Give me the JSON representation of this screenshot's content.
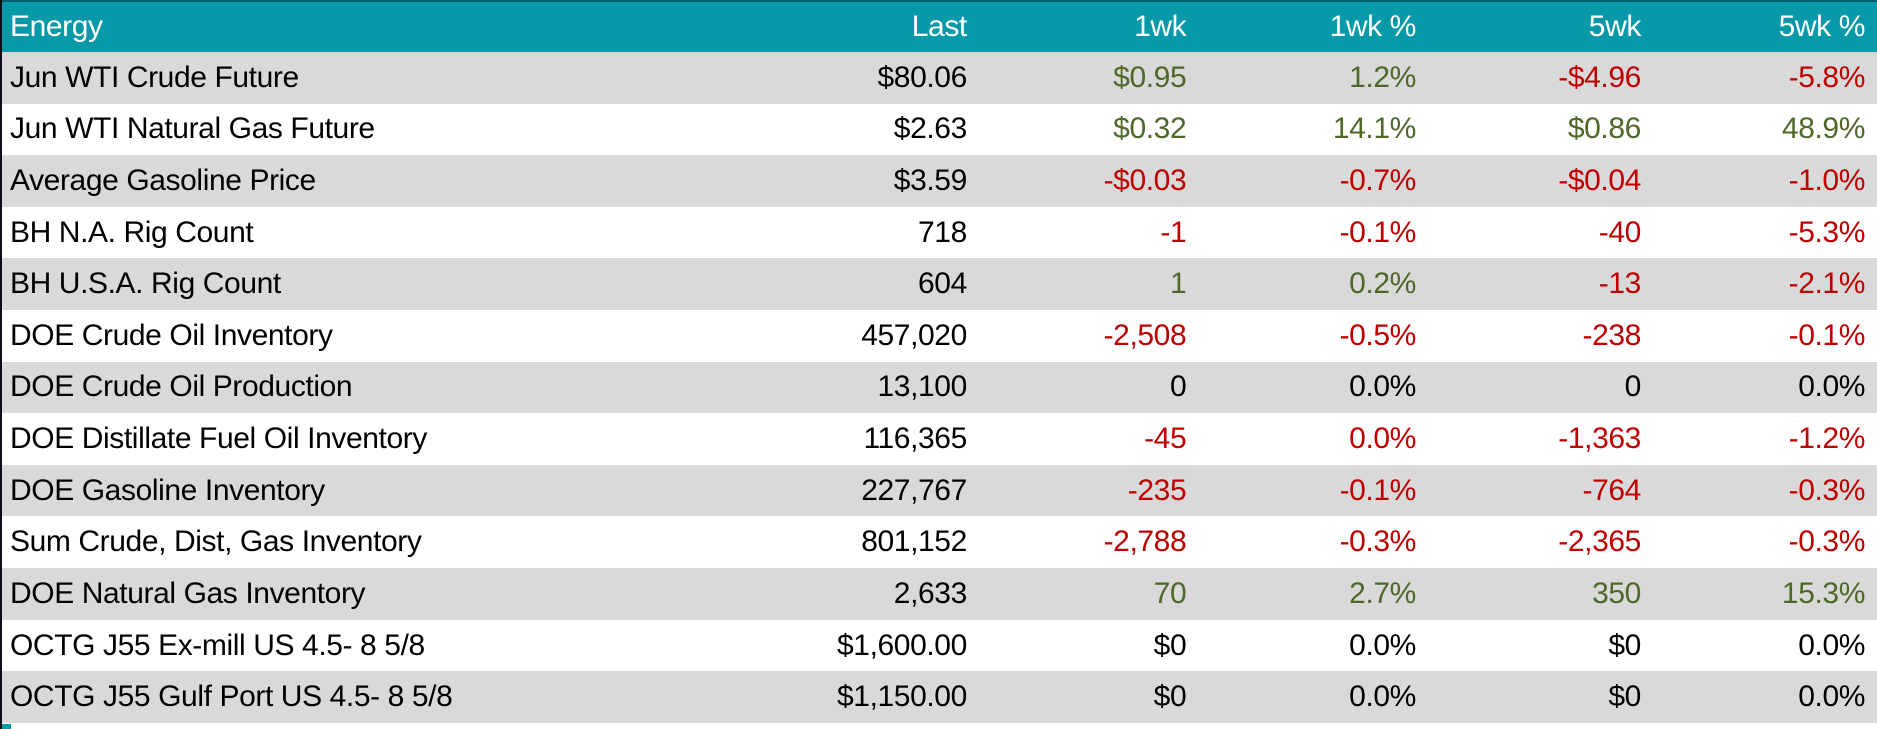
{
  "styles": {
    "header_bg": "#0899A8",
    "header_text": "#FFFFFF",
    "row_bg": "#FFFFFF",
    "row_alt_bg": "#D9D9D9",
    "positive_color": "#4E682A",
    "negative_color": "#C00000",
    "neutral_color": "#000000",
    "left_border_color": "#0E0E18"
  },
  "chart_data": {
    "type": "table",
    "title": "Energy",
    "columns": [
      "Energy",
      "Last",
      "1wk",
      "1wk %",
      "5wk",
      "5wk %"
    ],
    "rows": [
      {
        "name": "Jun WTI Crude Future",
        "values": [
          "$80.06",
          "$0.95",
          "1.2%",
          "-$4.96",
          "-5.8%"
        ],
        "value_colors": [
          "neutral",
          "pos",
          "pos",
          "neg",
          "neg"
        ]
      },
      {
        "name": "Jun WTI Natural Gas Future",
        "values": [
          "$2.63",
          "$0.32",
          "14.1%",
          "$0.86",
          "48.9%"
        ],
        "value_colors": [
          "neutral",
          "pos",
          "pos",
          "pos",
          "pos"
        ]
      },
      {
        "name": "Average Gasoline Price",
        "values": [
          "$3.59",
          "-$0.03",
          "-0.7%",
          "-$0.04",
          "-1.0%"
        ],
        "value_colors": [
          "neutral",
          "neg",
          "neg",
          "neg",
          "neg"
        ]
      },
      {
        "name": "BH N.A. Rig Count",
        "values": [
          "718",
          "-1",
          "-0.1%",
          "-40",
          "-5.3%"
        ],
        "value_colors": [
          "neutral",
          "neg",
          "neg",
          "neg",
          "neg"
        ]
      },
      {
        "name": "BH U.S.A. Rig Count",
        "values": [
          "604",
          "1",
          "0.2%",
          "-13",
          "-2.1%"
        ],
        "value_colors": [
          "neutral",
          "pos",
          "pos",
          "neg",
          "neg"
        ]
      },
      {
        "name": "DOE Crude Oil Inventory",
        "values": [
          "457,020",
          "-2,508",
          "-0.5%",
          "-238",
          "-0.1%"
        ],
        "value_colors": [
          "neutral",
          "neg",
          "neg",
          "neg",
          "neg"
        ]
      },
      {
        "name": "DOE Crude Oil Production",
        "values": [
          "13,100",
          "0",
          "0.0%",
          "0",
          "0.0%"
        ],
        "value_colors": [
          "neutral",
          "flat",
          "flat",
          "flat",
          "flat"
        ]
      },
      {
        "name": "DOE Distillate Fuel Oil Inventory",
        "values": [
          "116,365",
          "-45",
          "0.0%",
          "-1,363",
          "-1.2%"
        ],
        "value_colors": [
          "neutral",
          "neg",
          "neg",
          "neg",
          "neg"
        ]
      },
      {
        "name": "DOE Gasoline Inventory",
        "values": [
          "227,767",
          "-235",
          "-0.1%",
          "-764",
          "-0.3%"
        ],
        "value_colors": [
          "neutral",
          "neg",
          "neg",
          "neg",
          "neg"
        ]
      },
      {
        "name": "Sum Crude, Dist, Gas Inventory",
        "values": [
          "801,152",
          "-2,788",
          "-0.3%",
          "-2,365",
          "-0.3%"
        ],
        "value_colors": [
          "neutral",
          "neg",
          "neg",
          "neg",
          "neg"
        ]
      },
      {
        "name": "DOE Natural Gas Inventory",
        "values": [
          "2,633",
          "70",
          "2.7%",
          "350",
          "15.3%"
        ],
        "value_colors": [
          "neutral",
          "pos",
          "pos",
          "pos",
          "pos"
        ]
      },
      {
        "name": "OCTG J55 Ex-mill US 4.5- 8 5/8",
        "values": [
          "$1,600.00",
          "$0",
          "0.0%",
          "$0",
          "0.0%"
        ],
        "value_colors": [
          "neutral",
          "flat",
          "flat",
          "flat",
          "flat"
        ]
      },
      {
        "name": "OCTG J55 Gulf Port US 4.5- 8 5/8",
        "values": [
          "$1,150.00",
          "$0",
          "0.0%",
          "$0",
          "0.0%"
        ],
        "value_colors": [
          "neutral",
          "flat",
          "flat",
          "flat",
          "flat"
        ]
      }
    ]
  }
}
